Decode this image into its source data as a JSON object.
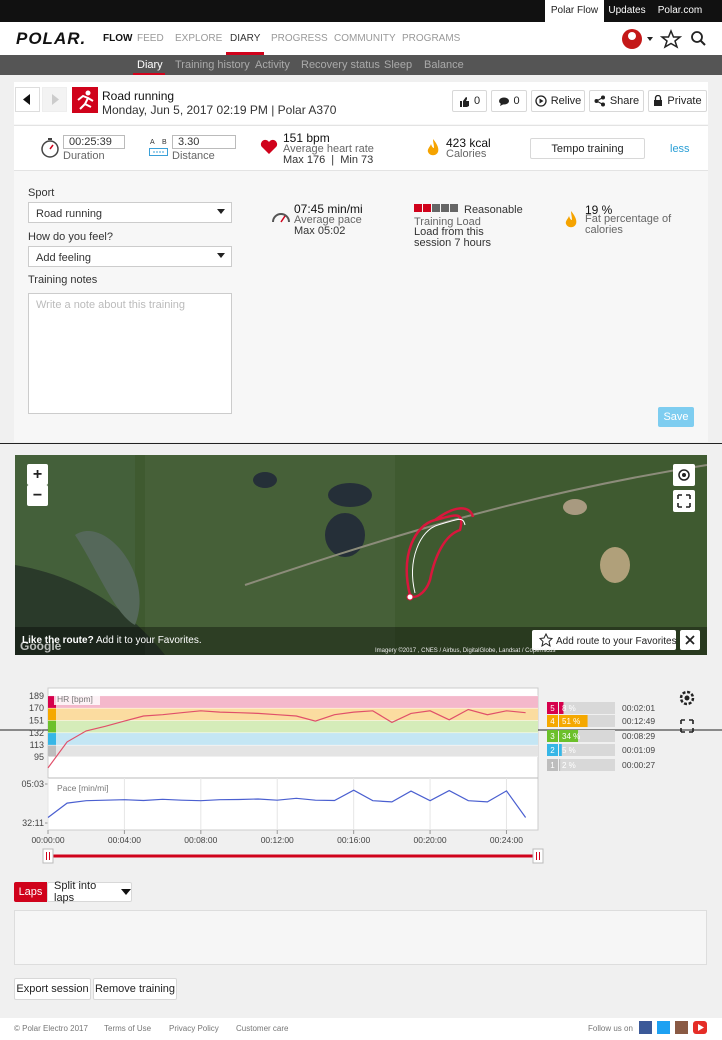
{
  "top_links": [
    "Polar Flow",
    "Updates",
    "Polar.com"
  ],
  "nav": {
    "logo": "POLAR.",
    "items": [
      "FLOW",
      "FEED",
      "EXPLORE",
      "DIARY",
      "PROGRESS",
      "COMMUNITY",
      "PROGRAMS"
    ]
  },
  "subnav": [
    "Diary",
    "Training history",
    "Activity",
    "Recovery status",
    "Sleep",
    "Balance"
  ],
  "header": {
    "title": "Road running",
    "subtitle": "Monday, Jun 5, 2017 02:19 PM | Polar A370",
    "likes": "0",
    "comments": "0",
    "actions": [
      "Relive",
      "Share",
      "Private"
    ]
  },
  "summary": {
    "duration": {
      "value": "00:25:39",
      "label": "Duration"
    },
    "distance": {
      "markers": [
        "A",
        "B"
      ],
      "value": "3.30",
      "label": "Distance"
    },
    "heart_rate": {
      "value": "151 bpm",
      "label": "Average heart rate",
      "detail": "Max 176  |  Min 73"
    },
    "calories": {
      "value": "423 kcal",
      "label": "Calories"
    },
    "benefit": "Tempo training",
    "toggle": "less"
  },
  "form": {
    "sport_label": "Sport",
    "sport": "Road running",
    "feeling_label": "How do you feel?",
    "feeling": "Add feeling",
    "notes_label": "Training notes",
    "notes_placeholder": "Write a note about this training",
    "save": "Save"
  },
  "stats": {
    "pace": {
      "value": "07:45 min/mi",
      "label": "Average pace",
      "detail": "Max 05:02"
    },
    "load": {
      "level": "Reasonable",
      "label": "Training Load",
      "detail": "Load from this session 7 hours"
    },
    "fat": {
      "value": "19 %",
      "label": "Fat percentage of calories"
    }
  },
  "map": {
    "zoom": [
      "+",
      "−"
    ],
    "prompt": "Like the route?",
    "prompt_detail": "Add it to your Favorites.",
    "favorite": "Add route to your Favorites",
    "brand": "Google",
    "attribution": "Imagery ©2017 , CNES / Airbus, DigitalGlobe, Landsat / Copernicus"
  },
  "chart": {
    "xlim": [
      0,
      1539
    ],
    "xticks": [
      {
        "value": 0,
        "label": "00:00:00"
      },
      {
        "value": 240,
        "label": "00:04:00"
      },
      {
        "value": 480,
        "label": "00:08:00"
      },
      {
        "value": 720,
        "label": "00:12:00"
      },
      {
        "value": 960,
        "label": "00:16:00"
      },
      {
        "value": 1200,
        "label": "00:20:00"
      },
      {
        "value": 1440,
        "label": "00:24:00"
      }
    ],
    "x": [
      0,
      60,
      120,
      180,
      240,
      300,
      360,
      420,
      480,
      540,
      600,
      660,
      720,
      780,
      840,
      900,
      960,
      1020,
      1080,
      1140,
      1200,
      1260,
      1320,
      1380,
      1440,
      1500
    ],
    "hr": {
      "name": "HR [bpm]",
      "color": "#e0506a",
      "ylim": [
        67,
        198
      ],
      "yticks": [
        189,
        170,
        151,
        132,
        113,
        95
      ],
      "values": [
        78,
        118,
        135,
        142,
        150,
        158,
        160,
        163,
        166,
        164,
        163,
        162,
        160,
        158,
        150,
        160,
        164,
        166,
        148,
        162,
        166,
        152,
        168,
        160,
        166,
        163
      ]
    },
    "pace": {
      "name": "Pace [min/mi]",
      "color": "#4a5fd0",
      "ylim": [
        1931,
        303
      ],
      "yticks": [
        {
          "value": 303,
          "label": "05:03"
        },
        {
          "value": 1931,
          "label": "32:11"
        }
      ],
      "values": [
        1700,
        1100,
        1000,
        980,
        960,
        990,
        940,
        980,
        1000,
        960,
        950,
        930,
        980,
        900,
        980,
        990,
        560,
        1000,
        1050,
        600,
        1000,
        580,
        1000,
        1050,
        590,
        1700
      ]
    },
    "zones": [
      {
        "zone": "5",
        "percent": 8,
        "label": "8 %",
        "time": "00:02:01",
        "color": "#d6004c",
        "band_color": "#f4b8cb"
      },
      {
        "zone": "4",
        "percent": 51,
        "label": "51 %",
        "time": "00:12:49",
        "color": "#f5a800",
        "band_color": "#fbdca0"
      },
      {
        "zone": "3",
        "percent": 34,
        "label": "34 %",
        "time": "00:08:29",
        "color": "#6cc02b",
        "band_color": "#d5ecb9"
      },
      {
        "zone": "2",
        "percent": 5,
        "label": "5 %",
        "time": "00:01:09",
        "color": "#36b6e6",
        "band_color": "#c4e6f4"
      },
      {
        "zone": "1",
        "percent": 2,
        "label": "2 %",
        "time": "00:00:27",
        "color": "#bdbdbd",
        "band_color": "#e4e4e4"
      }
    ]
  },
  "laps": {
    "tab": "Laps",
    "split": "Split into laps"
  },
  "buttons": [
    "Export session",
    "Remove training"
  ],
  "footer": {
    "copyright": "© Polar Electro 2017",
    "links": [
      "Terms of Use",
      "Privacy Policy",
      "Customer care"
    ],
    "follow": "Follow us on"
  }
}
